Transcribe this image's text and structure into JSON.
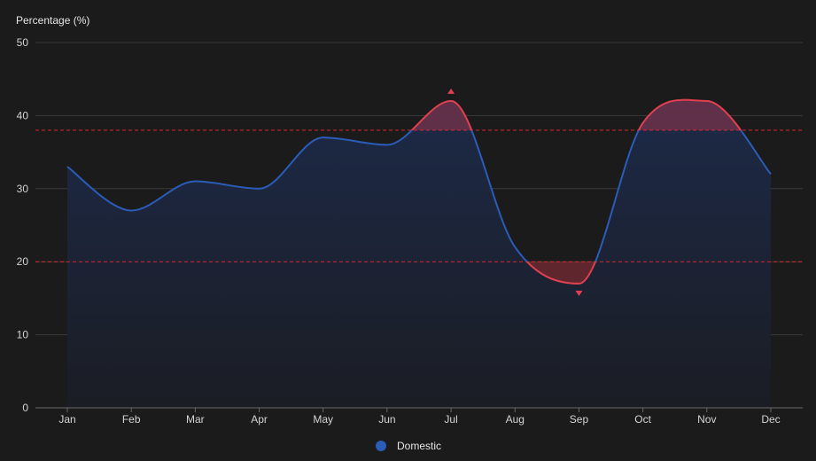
{
  "chart_data": {
    "type": "area",
    "ylabel": "Percentage (%)",
    "categories": [
      "Jan",
      "Feb",
      "Mar",
      "Apr",
      "May",
      "Jun",
      "Jul",
      "Aug",
      "Sep",
      "Oct",
      "Nov",
      "Dec"
    ],
    "ylim": [
      0,
      50
    ],
    "yticks": [
      0,
      10,
      20,
      30,
      40,
      50
    ],
    "grid": true,
    "legend_position": "bottom-center",
    "series": [
      {
        "name": "Domestic",
        "values": [
          33,
          27,
          31,
          30,
          37,
          36,
          42,
          22,
          17,
          39,
          42,
          32
        ]
      }
    ],
    "thresholds": {
      "upper": 38,
      "lower": 20
    },
    "markers": [
      {
        "category": "Jul",
        "value": 42,
        "type": "max"
      },
      {
        "category": "Sep",
        "value": 17,
        "type": "min"
      }
    ],
    "colors": {
      "series": "#2b5cb8",
      "alert": "#e04050",
      "threshold": "#d9252f"
    }
  }
}
